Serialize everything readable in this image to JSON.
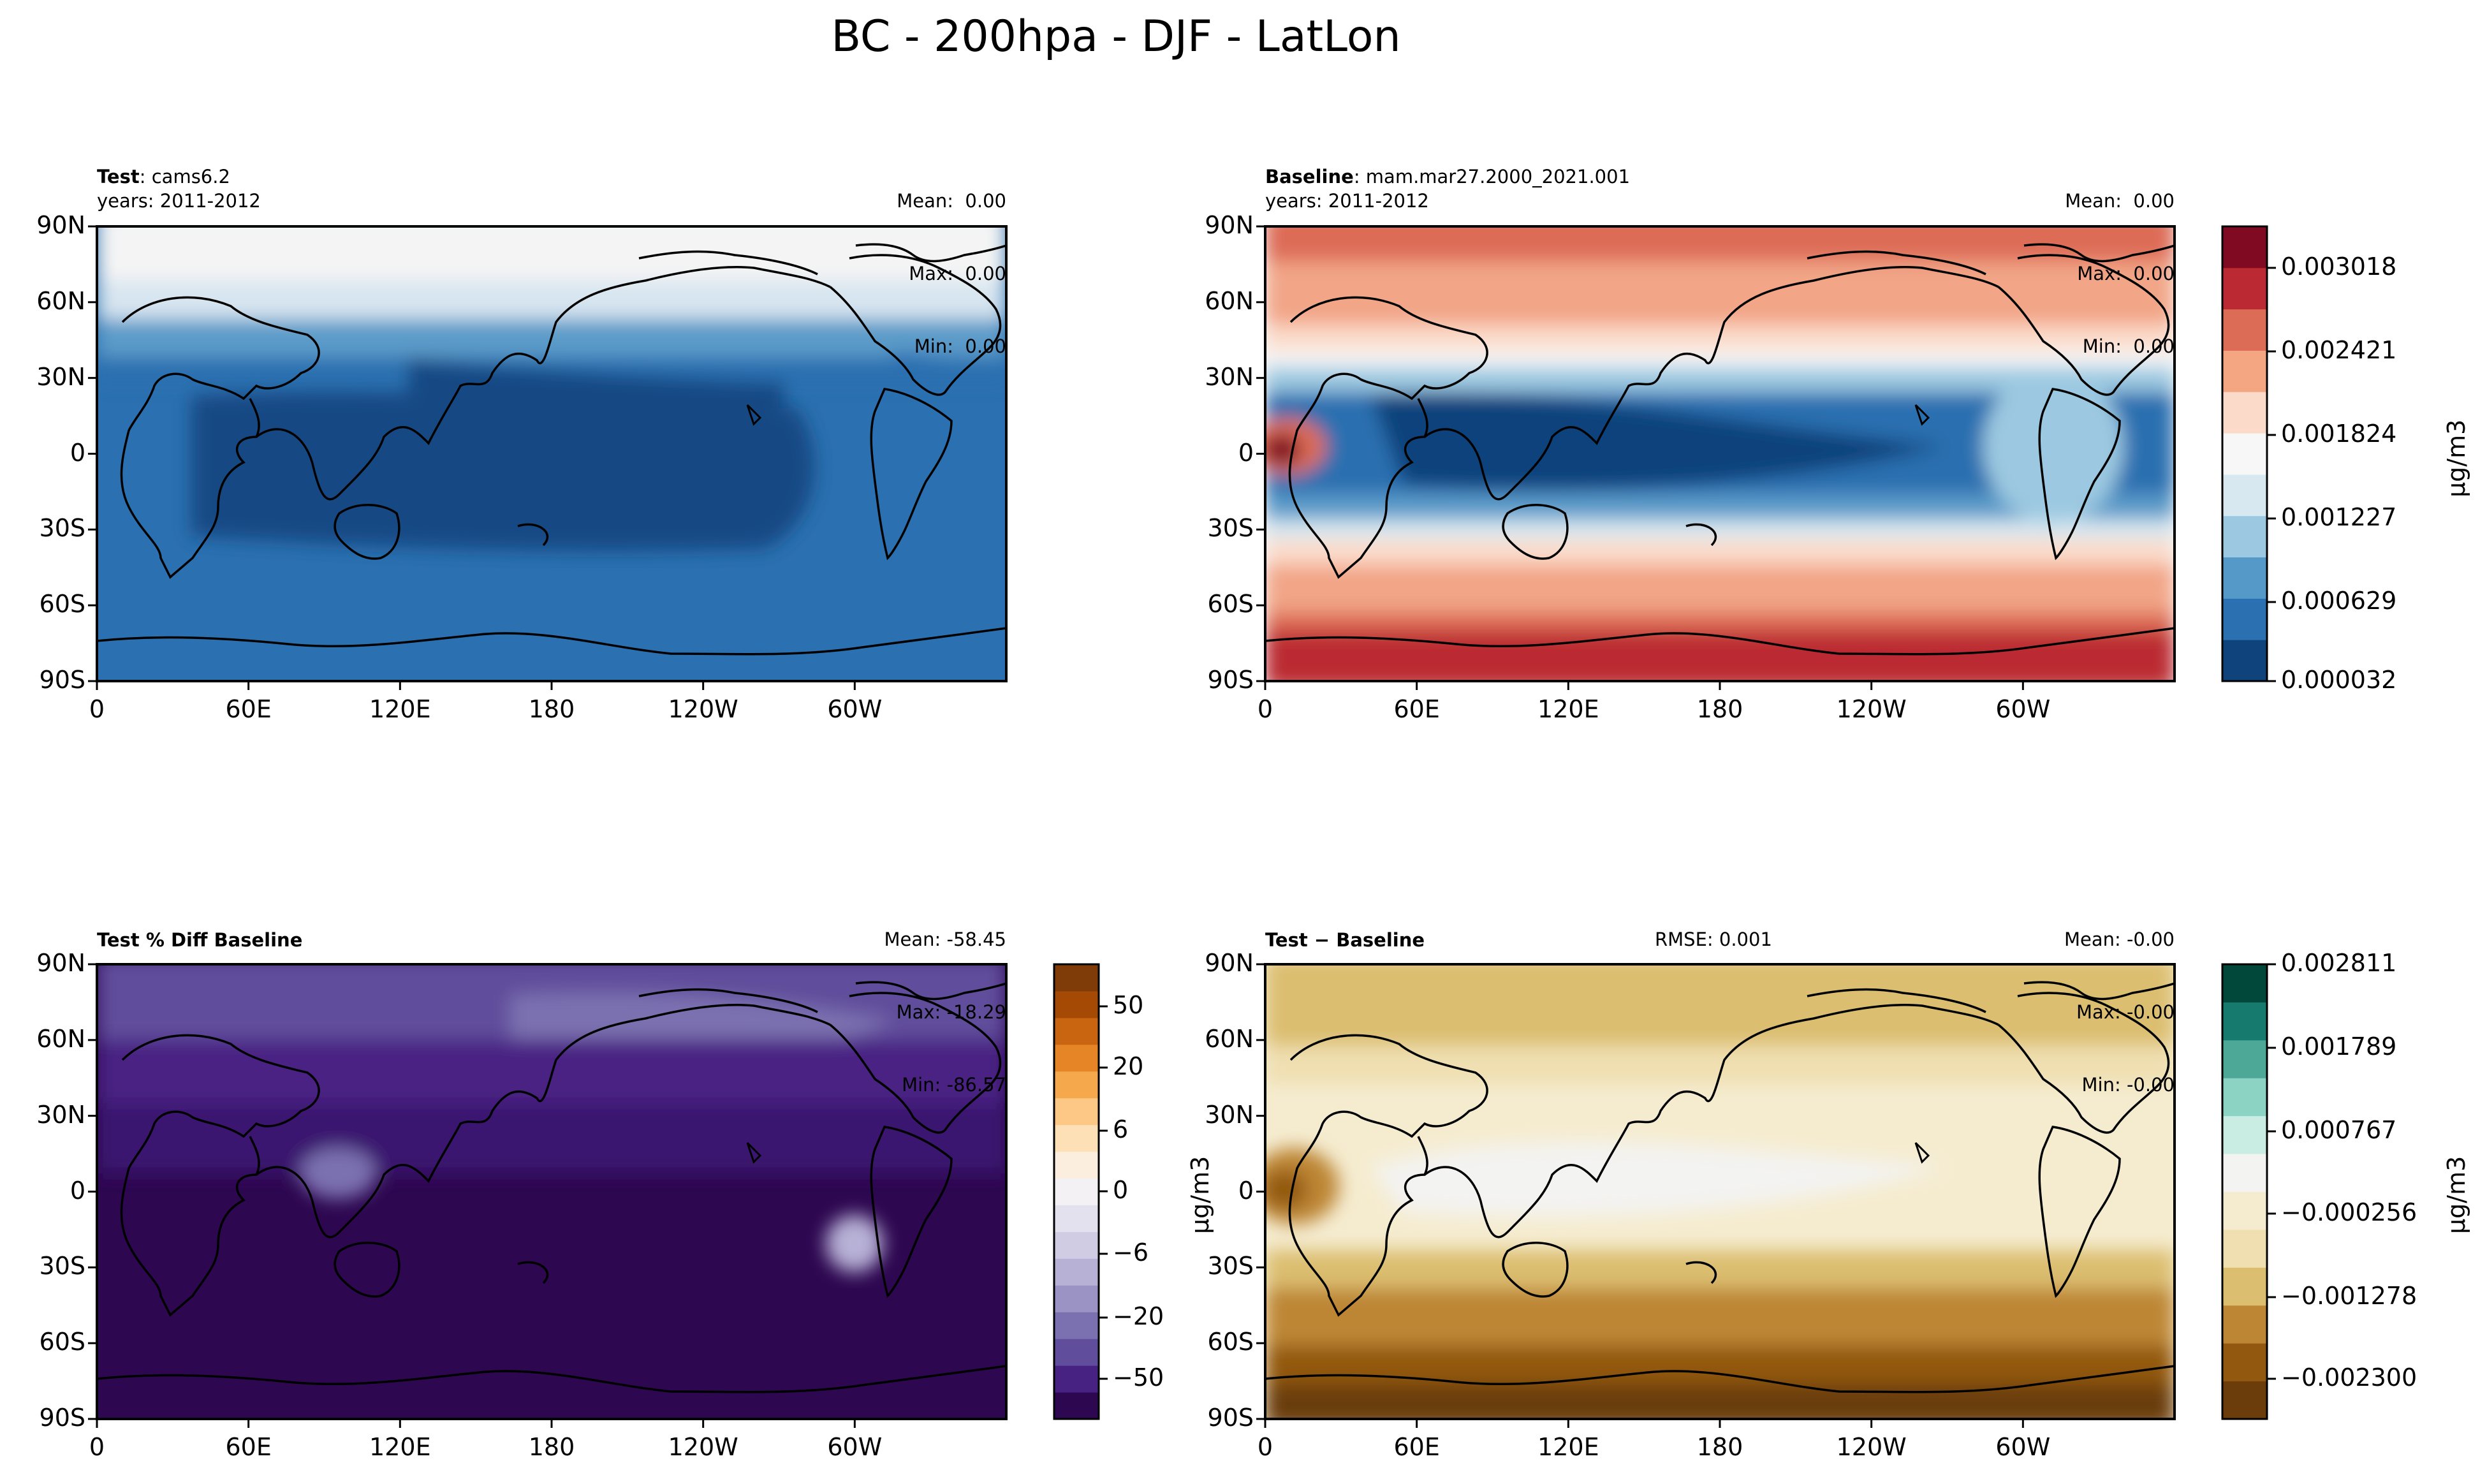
{
  "figure": {
    "title": "BC - 200hpa - DJF - LatLon"
  },
  "axes": {
    "y_ticks": [
      "90N",
      "60N",
      "30N",
      "0",
      "30S",
      "60S",
      "90S"
    ],
    "x_ticks": [
      "0",
      "60E",
      "120E",
      "180",
      "120W",
      "60W"
    ]
  },
  "panels": {
    "test": {
      "title_bold": "Test",
      "title_rest": ": cams6.2",
      "years": "years: 2011-2012",
      "stats": [
        "Mean:  0.00",
        "Max:  0.00",
        "Min:  0.00"
      ]
    },
    "baseline": {
      "title_bold": "Baseline",
      "title_rest": ": mam.mar27.2000_2021.001",
      "years": "years: 2011-2012",
      "stats": [
        "Mean:  0.00",
        "Max:  0.00",
        "Min:  0.00"
      ]
    },
    "pct_diff": {
      "title_bold": "Test % Diff Baseline",
      "stats": [
        "Mean: -58.45",
        "Max: -18.29",
        "Min: -86.57"
      ]
    },
    "diff": {
      "title_bold": "Test − Baseline",
      "rmse": "RMSE: 0.001",
      "stats": [
        "Mean: -0.00",
        "Max: -0.00",
        "Min: -0.00"
      ]
    }
  },
  "colorbars": {
    "main": {
      "ticks": [
        "0.003018",
        "0.002421",
        "0.001824",
        "0.001227",
        "0.000629",
        "0.000032"
      ],
      "unit": "μg/m3",
      "colors": [
        "#0f437b",
        "#2b70b0",
        "#5499c8",
        "#9cc9e1",
        "#d7e8f1",
        "#f7f7f7",
        "#fcdac9",
        "#f4a683",
        "#dd6c57",
        "#bb2a33",
        "#7f0a21"
      ]
    },
    "pct": {
      "ticks": [
        "50",
        "20",
        "6",
        "0",
        "−6",
        "−20",
        "−50"
      ],
      "colors": [
        "#2d0750",
        "#482283",
        "#604d9b",
        "#7c71b0",
        "#9a93c4",
        "#b7b1d6",
        "#d0cce4",
        "#e4e1ee",
        "#f3f1f4",
        "#fbeede",
        "#fee0b6",
        "#fdc885",
        "#f6a84c",
        "#e58526",
        "#c96510",
        "#a54a05",
        "#7f3b08"
      ]
    },
    "diff": {
      "ticks": [
        "0.002811",
        "0.001789",
        "0.000767",
        "−0.000256",
        "−0.001278",
        "−0.002300"
      ],
      "unit": "μg/m3",
      "colors": [
        "#6b3d0b",
        "#92580f",
        "#bd8634",
        "#dbbe6f",
        "#efdfb1",
        "#f5ecd0",
        "#f3f3f1",
        "#c9ece3",
        "#8dd3c3",
        "#4da898",
        "#167b6e",
        "#01473a"
      ]
    }
  },
  "chart_data": [
    {
      "type": "heatmap",
      "name": "Test",
      "variable": "BC",
      "level": "200hpa",
      "season": "DJF",
      "x": [
        "0",
        "60E",
        "120E",
        "180",
        "120W",
        "60W"
      ],
      "y": [
        "90N",
        "60N",
        "30N",
        "0",
        "30S",
        "60S",
        "90S"
      ],
      "bands": [
        {
          "lat_range": [
            35,
            90
          ],
          "value_level": "high (≈0.0017)"
        },
        {
          "lat_range": [
            25,
            35
          ],
          "value_level": "moderate (≈0.0009)"
        },
        {
          "lat_range": [
            -40,
            25
          ],
          "value_level": "lowest (≈0.0002)"
        },
        {
          "lat_range": [
            -90,
            -40
          ],
          "value_level": "low (≈0.0005)"
        }
      ],
      "mean": 0.0,
      "max": 0.0,
      "min": 0.0,
      "unit": "μg/m3"
    },
    {
      "type": "heatmap",
      "name": "Baseline",
      "x": [
        "0",
        "60E",
        "120E",
        "180",
        "120W",
        "60W"
      ],
      "y": [
        "90N",
        "60N",
        "30N",
        "0",
        "30S",
        "60S",
        "90S"
      ],
      "colorbar_ticks": [
        3.2e-05,
        0.000629,
        0.001227,
        0.001824,
        0.002421,
        0.003018
      ],
      "features": [
        "tropical minimum over Indian Ocean / Pacific",
        "high over northern midlatitudes",
        "maximum (~0.003) over southern polar ring and west Africa (0°E, 5°N)"
      ],
      "mean": 0.0,
      "max": 0.0,
      "min": 0.0,
      "unit": "μg/m3"
    },
    {
      "type": "heatmap",
      "name": "Test % Diff Baseline",
      "colorbar_ticks": [
        -50,
        -20,
        -6,
        0,
        6,
        20,
        50
      ],
      "range": [
        -86.57,
        -18.29
      ],
      "mean": -58.45,
      "max": -18.29,
      "min": -86.57
    },
    {
      "type": "heatmap",
      "name": "Test − Baseline",
      "colorbar_ticks": [
        -0.0023,
        -0.001278,
        -0.000256,
        0.000767,
        0.001789,
        0.002811
      ],
      "rmse": 0.001,
      "mean": -0.0,
      "max": -0.0,
      "min": -0.0,
      "unit": "μg/m3"
    }
  ]
}
